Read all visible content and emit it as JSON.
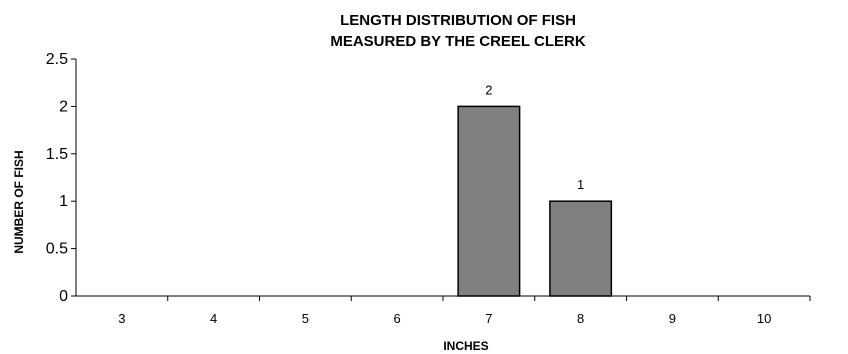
{
  "chart_data": {
    "type": "bar",
    "title_lines": [
      "LENGTH DISTRIBUTION OF FISH",
      "MEASURED BY THE CREEL CLERK"
    ],
    "xlabel": "INCHES",
    "ylabel": "NUMBER OF FISH",
    "categories": [
      "3",
      "4",
      "5",
      "6",
      "7",
      "8",
      "9",
      "10"
    ],
    "values": [
      0,
      0,
      0,
      0,
      2,
      1,
      0,
      0
    ],
    "data_labels": [
      "",
      "",
      "",
      "",
      "2",
      "1",
      "",
      ""
    ],
    "ylim": [
      0,
      2.5
    ],
    "yticks": [
      "0",
      "0.5",
      "1",
      "1.5",
      "2",
      "2.5"
    ],
    "grid": false,
    "legend": "none",
    "colors": {
      "bar_fill": "#808080",
      "bar_stroke": "#000000",
      "axis": "#000000"
    }
  }
}
